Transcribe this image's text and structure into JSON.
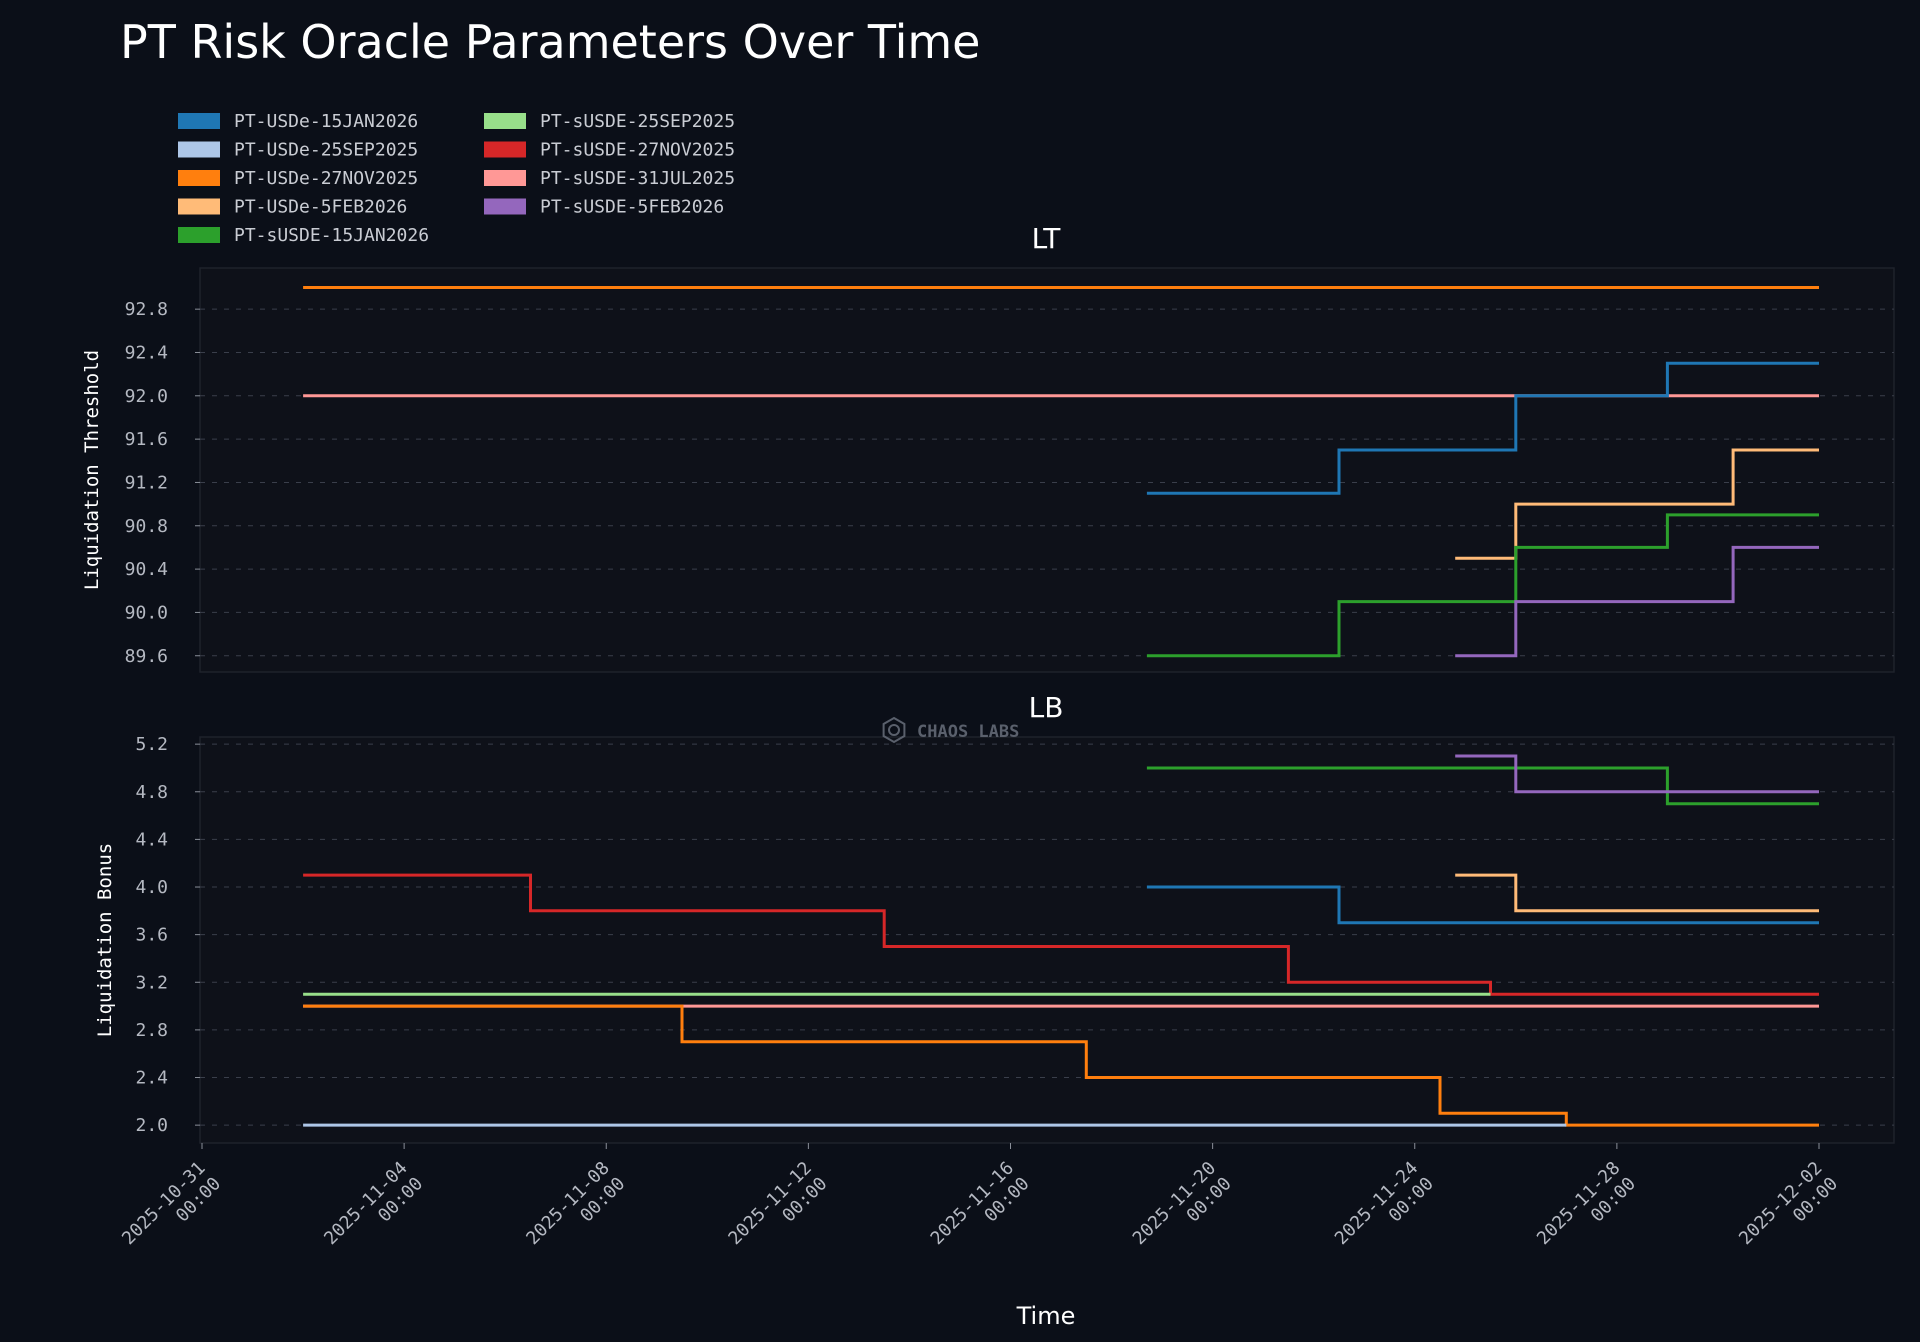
{
  "title": "PT Risk Oracle Parameters Over Time",
  "watermark": "CHAOS LABS",
  "legend": [
    {
      "label": "PT-USDe-15JAN2026",
      "color": "#1f77b4"
    },
    {
      "label": "PT-USDe-25SEP2025",
      "color": "#aec7e8"
    },
    {
      "label": "PT-USDe-27NOV2025",
      "color": "#ff7f0e"
    },
    {
      "label": "PT-USDe-5FEB2026",
      "color": "#ffbb78"
    },
    {
      "label": "PT-sUSDE-15JAN2026",
      "color": "#2ca02c"
    },
    {
      "label": "PT-sUSDE-25SEP2025",
      "color": "#98df8a"
    },
    {
      "label": "PT-sUSDE-27NOV2025",
      "color": "#d62728"
    },
    {
      "label": "PT-sUSDE-31JUL2025",
      "color": "#ff9896"
    },
    {
      "label": "PT-sUSDE-5FEB2026",
      "color": "#9467bd"
    }
  ],
  "chart_data": [
    {
      "type": "line",
      "step": true,
      "title": "LT",
      "ylabel": "Liquidation Threshold",
      "xlabel": "",
      "grid": true,
      "xlim": [
        "2025-10-31",
        "2025-12-02"
      ],
      "ylim": [
        89.45,
        93.18
      ],
      "yticks": [
        89.6,
        90.0,
        90.4,
        90.8,
        91.2,
        91.6,
        92.0,
        92.4,
        92.8
      ],
      "ytick_labels": [
        "89.6",
        "90.0",
        "90.4",
        "90.8",
        "91.2",
        "91.6",
        "92.0",
        "92.4",
        "92.8"
      ],
      "series": [
        {
          "name": "PT-USDe-27NOV2025",
          "color": "#ff7f0e",
          "points": [
            [
              "2025-11-02",
              93.0
            ],
            [
              "2025-12-02",
              93.0
            ]
          ]
        },
        {
          "name": "PT-sUSDE-31JUL2025",
          "color": "#ff9896",
          "points": [
            [
              "2025-11-02",
              92.0
            ],
            [
              "2025-12-02",
              92.0
            ]
          ]
        },
        {
          "name": "PT-USDe-15JAN2026",
          "color": "#1f77b4",
          "points": [
            [
              "2025-11-18.7",
              91.1
            ],
            [
              "2025-11-22.5",
              91.5
            ],
            [
              "2025-11-26",
              92.0
            ],
            [
              "2025-11-29",
              92.3
            ],
            [
              "2025-12-02",
              92.3
            ]
          ]
        },
        {
          "name": "PT-USDe-5FEB2026",
          "color": "#ffbb78",
          "points": [
            [
              "2025-11-24.8",
              90.5
            ],
            [
              "2025-11-26",
              91.0
            ],
            [
              "2025-11-30.3",
              91.5
            ],
            [
              "2025-12-02",
              91.5
            ]
          ]
        },
        {
          "name": "PT-sUSDE-15JAN2026",
          "color": "#2ca02c",
          "points": [
            [
              "2025-11-18.7",
              89.6
            ],
            [
              "2025-11-22.5",
              90.1
            ],
            [
              "2025-11-26",
              90.6
            ],
            [
              "2025-11-29",
              90.9
            ],
            [
              "2025-12-02",
              90.9
            ]
          ]
        },
        {
          "name": "PT-sUSDE-5FEB2026",
          "color": "#9467bd",
          "points": [
            [
              "2025-11-24.8",
              89.6
            ],
            [
              "2025-11-26",
              90.1
            ],
            [
              "2025-11-30.3",
              90.6
            ],
            [
              "2025-12-02",
              90.6
            ]
          ]
        }
      ]
    },
    {
      "type": "line",
      "step": true,
      "title": "LB",
      "ylabel": "Liquidation Bonus",
      "xlabel": "Time",
      "grid": true,
      "xlim": [
        "2025-10-31",
        "2025-12-02"
      ],
      "ylim": [
        1.85,
        5.26
      ],
      "yticks": [
        2.0,
        2.4,
        2.8,
        3.2,
        3.6,
        4.0,
        4.4,
        4.8,
        5.2
      ],
      "ytick_labels": [
        "2.0",
        "2.4",
        "2.8",
        "3.2",
        "3.6",
        "4.0",
        "4.4",
        "4.8",
        "5.2"
      ],
      "xticks": [
        "2025-10-31",
        "2025-11-04",
        "2025-11-08",
        "2025-11-12",
        "2025-11-16",
        "2025-11-20",
        "2025-11-24",
        "2025-11-28",
        "2025-12-02"
      ],
      "xtick_labels": [
        [
          "2025-10-31",
          "00:00"
        ],
        [
          "2025-11-04",
          "00:00"
        ],
        [
          "2025-11-08",
          "00:00"
        ],
        [
          "2025-11-12",
          "00:00"
        ],
        [
          "2025-11-16",
          "00:00"
        ],
        [
          "2025-11-20",
          "00:00"
        ],
        [
          "2025-11-24",
          "00:00"
        ],
        [
          "2025-11-28",
          "00:00"
        ],
        [
          "2025-12-02",
          "00:00"
        ]
      ],
      "series": [
        {
          "name": "PT-sUSDE-27NOV2025",
          "color": "#d62728",
          "points": [
            [
              "2025-11-02",
              4.1
            ],
            [
              "2025-11-06.5",
              3.8
            ],
            [
              "2025-11-13.5",
              3.5
            ],
            [
              "2025-11-21.5",
              3.2
            ],
            [
              "2025-11-25.5",
              3.1
            ],
            [
              "2025-12-02",
              3.1
            ]
          ]
        },
        {
          "name": "PT-sUSDE-25SEP2025",
          "color": "#98df8a",
          "points": [
            [
              "2025-11-02",
              3.1
            ],
            [
              "2025-11-25.5",
              3.1
            ]
          ]
        },
        {
          "name": "PT-sUSDE-31JUL2025",
          "color": "#ff9896",
          "points": [
            [
              "2025-11-02",
              3.0
            ],
            [
              "2025-12-02",
              3.0
            ]
          ]
        },
        {
          "name": "PT-USDe-27NOV2025",
          "color": "#ff7f0e",
          "points": [
            [
              "2025-11-02",
              3.0
            ],
            [
              "2025-11-09.5",
              2.7
            ],
            [
              "2025-11-17.5",
              2.4
            ],
            [
              "2025-11-24.5",
              2.1
            ],
            [
              "2025-11-27",
              2.0
            ],
            [
              "2025-12-02",
              2.0
            ]
          ]
        },
        {
          "name": "PT-USDe-25SEP2025",
          "color": "#aec7e8",
          "points": [
            [
              "2025-11-02",
              2.0
            ],
            [
              "2025-11-27",
              2.0
            ]
          ]
        },
        {
          "name": "PT-USDe-15JAN2026",
          "color": "#1f77b4",
          "points": [
            [
              "2025-11-18.7",
              4.0
            ],
            [
              "2025-11-22.5",
              3.7
            ],
            [
              "2025-12-02",
              3.7
            ]
          ]
        },
        {
          "name": "PT-USDe-5FEB2026",
          "color": "#ffbb78",
          "points": [
            [
              "2025-11-24.8",
              4.1
            ],
            [
              "2025-11-26",
              3.8
            ],
            [
              "2025-12-02",
              3.8
            ]
          ]
        },
        {
          "name": "PT-sUSDE-15JAN2026",
          "color": "#2ca02c",
          "points": [
            [
              "2025-11-18.7",
              5.0
            ],
            [
              "2025-11-29",
              4.7
            ],
            [
              "2025-12-02",
              4.7
            ]
          ]
        },
        {
          "name": "PT-sUSDE-5FEB2026",
          "color": "#9467bd",
          "points": [
            [
              "2025-11-24.8",
              5.1
            ],
            [
              "2025-11-26",
              4.8
            ],
            [
              "2025-12-02",
              4.8
            ]
          ]
        }
      ]
    }
  ]
}
